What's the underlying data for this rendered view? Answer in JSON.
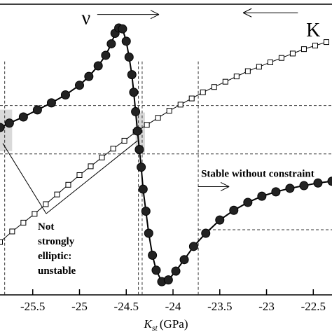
{
  "chart_data": {
    "type": "scatter",
    "title": "",
    "xlabel_main": "K",
    "xlabel_sub": "st",
    "xlabel_unit": "(GPa)",
    "ylabel": "",
    "xlim": [
      -25.85,
      -22.3
    ],
    "ylim": [
      -1.6,
      1.7
    ],
    "x_ticks": [
      -25.5,
      -25,
      -24.5,
      -24,
      -23.5,
      -23,
      -22.5
    ],
    "x_tick_labels": [
      "-25.5",
      "-25",
      "-24.5",
      "-24",
      "-23.5",
      "-23",
      "-22.5"
    ],
    "grid": false,
    "series": [
      {
        "name": "ν",
        "marker": "filled-circle",
        "color": "#111111",
        "points": [
          [
            -25.85,
            0.3
          ],
          [
            -25.75,
            0.35
          ],
          [
            -25.6,
            0.42
          ],
          [
            -25.45,
            0.5
          ],
          [
            -25.3,
            0.58
          ],
          [
            -25.15,
            0.67
          ],
          [
            -25.0,
            0.78
          ],
          [
            -24.9,
            0.88
          ],
          [
            -24.8,
            1.0
          ],
          [
            -24.72,
            1.12
          ],
          [
            -24.66,
            1.25
          ],
          [
            -24.62,
            1.37
          ],
          [
            -24.58,
            1.43
          ],
          [
            -24.54,
            1.42
          ],
          [
            -24.5,
            1.28
          ],
          [
            -24.47,
            1.1
          ],
          [
            -24.44,
            0.9
          ],
          [
            -24.42,
            0.7
          ],
          [
            -24.4,
            0.48
          ],
          [
            -24.38,
            0.26
          ],
          [
            -24.36,
            0.05
          ],
          [
            -24.34,
            -0.15
          ],
          [
            -24.32,
            -0.4
          ],
          [
            -24.29,
            -0.65
          ],
          [
            -24.26,
            -0.9
          ],
          [
            -24.22,
            -1.15
          ],
          [
            -24.18,
            -1.32
          ],
          [
            -24.12,
            -1.45
          ],
          [
            -24.05,
            -1.43
          ],
          [
            -23.97,
            -1.33
          ],
          [
            -23.88,
            -1.2
          ],
          [
            -23.78,
            -1.05
          ],
          [
            -23.65,
            -0.9
          ],
          [
            -23.5,
            -0.75
          ],
          [
            -23.35,
            -0.64
          ],
          [
            -23.2,
            -0.55
          ],
          [
            -23.05,
            -0.48
          ],
          [
            -22.9,
            -0.43
          ],
          [
            -22.75,
            -0.39
          ],
          [
            -22.6,
            -0.36
          ],
          [
            -22.45,
            -0.33
          ],
          [
            -22.3,
            -0.31
          ]
        ]
      },
      {
        "name": "K",
        "marker": "open-square",
        "color": "#111111",
        "points": [
          [
            -25.85,
            -1.0
          ],
          [
            -25.72,
            -0.88
          ],
          [
            -25.6,
            -0.78
          ],
          [
            -25.48,
            -0.68
          ],
          [
            -25.36,
            -0.57
          ],
          [
            -25.24,
            -0.46
          ],
          [
            -25.12,
            -0.35
          ],
          [
            -25.0,
            -0.24
          ],
          [
            -24.88,
            -0.14
          ],
          [
            -24.76,
            -0.04
          ],
          [
            -24.64,
            0.06
          ],
          [
            -24.52,
            0.15
          ],
          [
            -24.4,
            0.25
          ],
          [
            -24.28,
            0.33
          ],
          [
            -24.16,
            0.41
          ],
          [
            -24.04,
            0.49
          ],
          [
            -23.92,
            0.56
          ],
          [
            -23.8,
            0.63
          ],
          [
            -23.68,
            0.7
          ],
          [
            -23.56,
            0.76
          ],
          [
            -23.44,
            0.82
          ],
          [
            -23.32,
            0.88
          ],
          [
            -23.2,
            0.94
          ],
          [
            -23.08,
            0.99
          ],
          [
            -22.96,
            1.04
          ],
          [
            -22.84,
            1.09
          ],
          [
            -22.72,
            1.14
          ],
          [
            -22.6,
            1.19
          ],
          [
            -22.48,
            1.23
          ],
          [
            -22.36,
            1.27
          ]
        ]
      }
    ],
    "vertical_lines": [
      -25.8,
      -24.37,
      -24.33,
      -23.73
    ],
    "horizontal_lines": [
      {
        "y": 0.55,
        "from": -25.85,
        "to": -22.3
      },
      {
        "y": 0.0,
        "from": -25.85,
        "to": -22.3
      },
      {
        "y": -0.86,
        "from": -23.73,
        "to": -22.3
      }
    ],
    "annotations": [
      {
        "text": "ν",
        "x": -24.93,
        "y": 1.52,
        "arrow_to": -24.15,
        "kind": "symbol"
      },
      {
        "text": "K",
        "x": -22.5,
        "y": 1.38,
        "arrow_from": -23.25,
        "kind": "symbol"
      },
      {
        "text": "Stable without constraint",
        "x": -23.73,
        "y": -0.26,
        "arrow_to": -23.4,
        "kind": "label"
      }
    ],
    "note_lines": [
      "Not",
      "strongly",
      "elliptic:",
      "unstable"
    ]
  }
}
